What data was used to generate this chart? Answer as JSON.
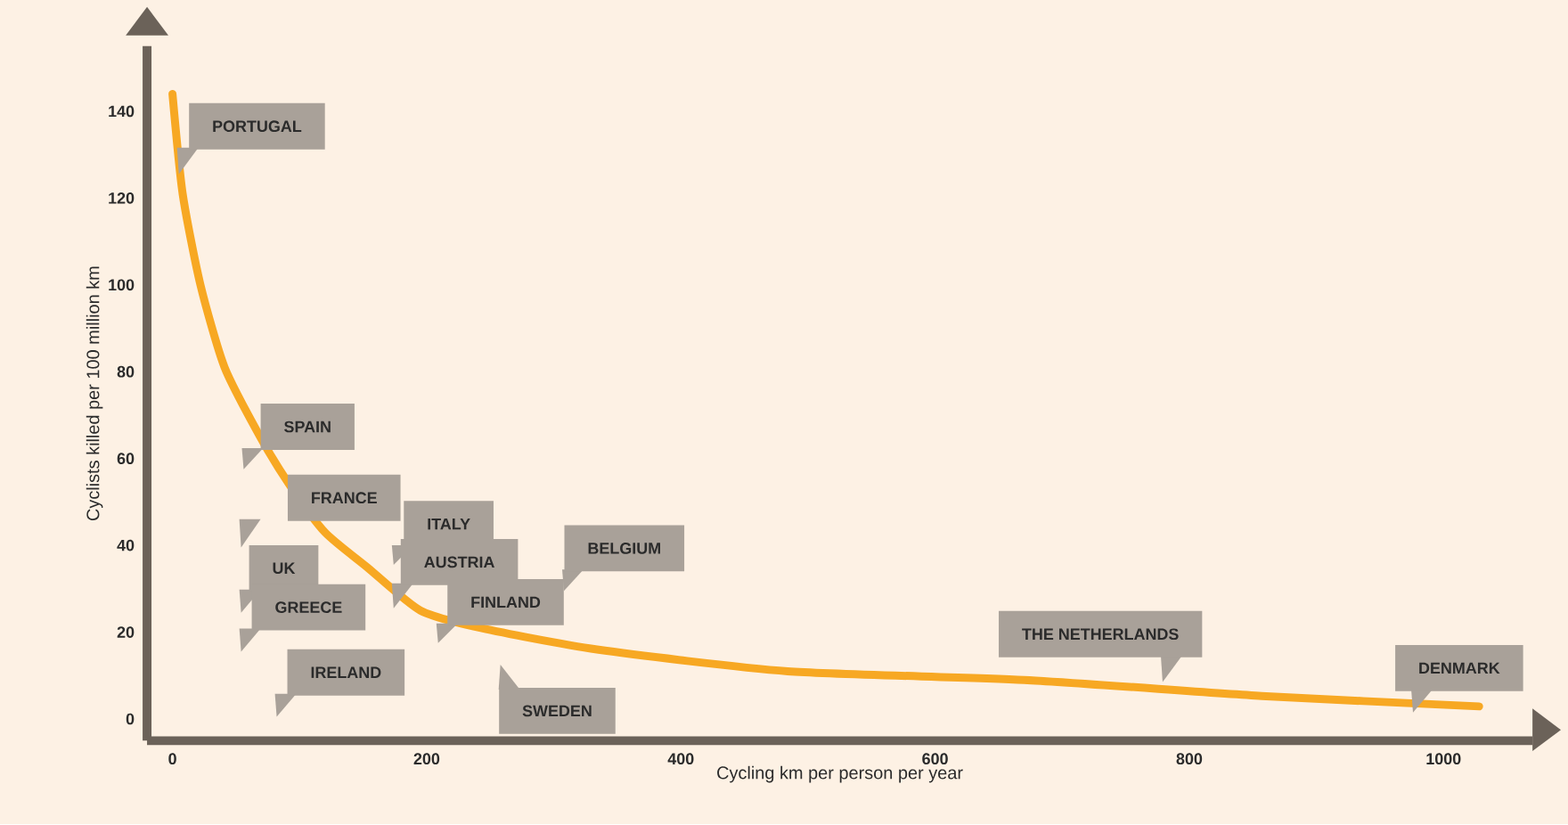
{
  "chart_data": {
    "type": "line",
    "xlabel": "Cycling km per person per year",
    "ylabel": "Cyclists killed per 100 million km",
    "series": [
      {
        "color": "#f7a823",
        "x": [
          0,
          8,
          22,
          41,
          69,
          92,
          120,
          153,
          195,
          242,
          334,
          484,
          670,
          857,
          1028
        ],
        "values": [
          144,
          121,
          100,
          81,
          65,
          54,
          43,
          35,
          25,
          21,
          16,
          11,
          9,
          5.3,
          2.9
        ]
      }
    ],
    "xlim": [
      -20,
      1070
    ],
    "ylim": [
      -5,
      155
    ],
    "xticks": [
      0,
      200,
      400,
      600,
      800,
      1000
    ],
    "yticks": [
      0,
      20,
      40,
      60,
      80,
      100,
      120,
      140
    ],
    "marker": "none",
    "line_style": "solid",
    "annotations": [
      "PORTUGAL",
      "SPAIN",
      "FRANCE",
      "UK",
      "GREECE",
      "IRELAND",
      "ITALY",
      "AUSTRIA",
      "FINLAND",
      "BELGIUM",
      "SWEDEN",
      "THE NETHERLANDS",
      "DENMARK"
    ]
  }
}
